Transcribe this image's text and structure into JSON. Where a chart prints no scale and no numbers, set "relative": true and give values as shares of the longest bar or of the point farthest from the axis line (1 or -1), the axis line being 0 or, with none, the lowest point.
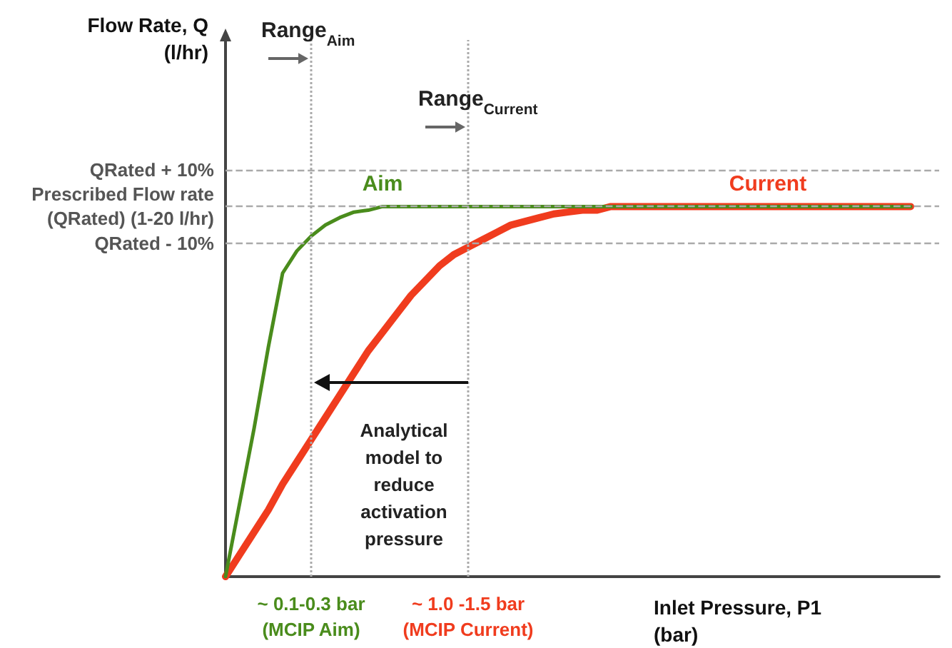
{
  "chart_data": {
    "type": "line",
    "relative": true,
    "legend": false,
    "grid": false,
    "marker": "none",
    "line_style": "solid",
    "xlabel": "Inlet Pressure, P1\n(bar)",
    "categories": [
      null,
      null,
      null,
      null,
      null,
      null,
      "~ 0.1-0.3 bar\n(MCIP Aim)",
      null,
      null,
      null,
      null,
      null,
      null,
      null,
      null,
      null,
      null,
      "~ 1.0 -1.5 bar\n(MCIP Current)",
      null,
      null,
      null,
      null,
      null,
      null,
      null,
      null,
      null,
      null,
      null,
      null,
      null,
      null,
      null,
      null,
      null,
      null,
      null,
      null,
      null,
      null,
      null,
      null,
      null,
      null,
      null,
      null,
      null,
      null,
      null,
      null,
      null
    ],
    "series": [
      {
        "name": "Aim",
        "color": "#4a8c1c",
        "values": [
          0,
          0.2,
          0.4,
          0.62,
          0.82,
          0.88,
          0.92,
          0.95,
          0.97,
          0.985,
          0.99,
          1,
          1,
          1,
          1,
          1,
          1,
          1,
          1,
          1,
          1,
          1,
          1,
          1,
          1,
          1,
          1,
          1,
          1,
          1,
          1,
          1,
          1,
          1,
          1,
          1,
          1,
          1,
          1,
          1,
          1,
          1,
          1,
          1,
          1,
          1,
          1,
          1,
          1,
          null,
          null
        ]
      },
      {
        "name": "Current",
        "color": "#f03c1e",
        "values": [
          0,
          0.06,
          0.12,
          0.18,
          0.25,
          0.31,
          0.37,
          0.43,
          0.49,
          0.55,
          0.61,
          0.66,
          0.71,
          0.76,
          0.8,
          0.84,
          0.87,
          0.89,
          0.91,
          0.93,
          0.95,
          0.96,
          0.97,
          0.98,
          0.985,
          0.99,
          0.99,
          1,
          1,
          1,
          1,
          1,
          1,
          1,
          1,
          1,
          1,
          1,
          1,
          1,
          1,
          1,
          1,
          1,
          1,
          1,
          1,
          1,
          1,
          null,
          null
        ]
      }
    ],
    "ref_lines": [
      {
        "axis": "y",
        "value": 1.1,
        "label": "QRated + 10%",
        "color": "#aaaaaa",
        "line_style": "dashed"
      },
      {
        "axis": "y",
        "value": 1,
        "label": "Prescribed Flow rate\n(QRated) (1-20 l/hr)",
        "color": "#aaaaaa",
        "line_style": "dashed"
      },
      {
        "axis": "y",
        "value": 0.9,
        "label": "QRated - 10%",
        "color": "#aaaaaa",
        "line_style": "dashed"
      },
      {
        "axis": "x",
        "value": "~ 0.1-0.3 bar\n(MCIP Aim)",
        "color": "#aaaaaa",
        "line_style": "dotted"
      },
      {
        "axis": "x",
        "value": "~ 1.0 -1.5 bar\n(MCIP Current)",
        "color": "#aaaaaa",
        "line_style": "dotted"
      }
    ],
    "annotations": [
      "Flow Rate, Q\n(l/hr)",
      "Range$_{Aim}$",
      "Range$_{Current}$",
      "Analytical\nmodel to\nreduce\nactivation\npressure"
    ]
  }
}
